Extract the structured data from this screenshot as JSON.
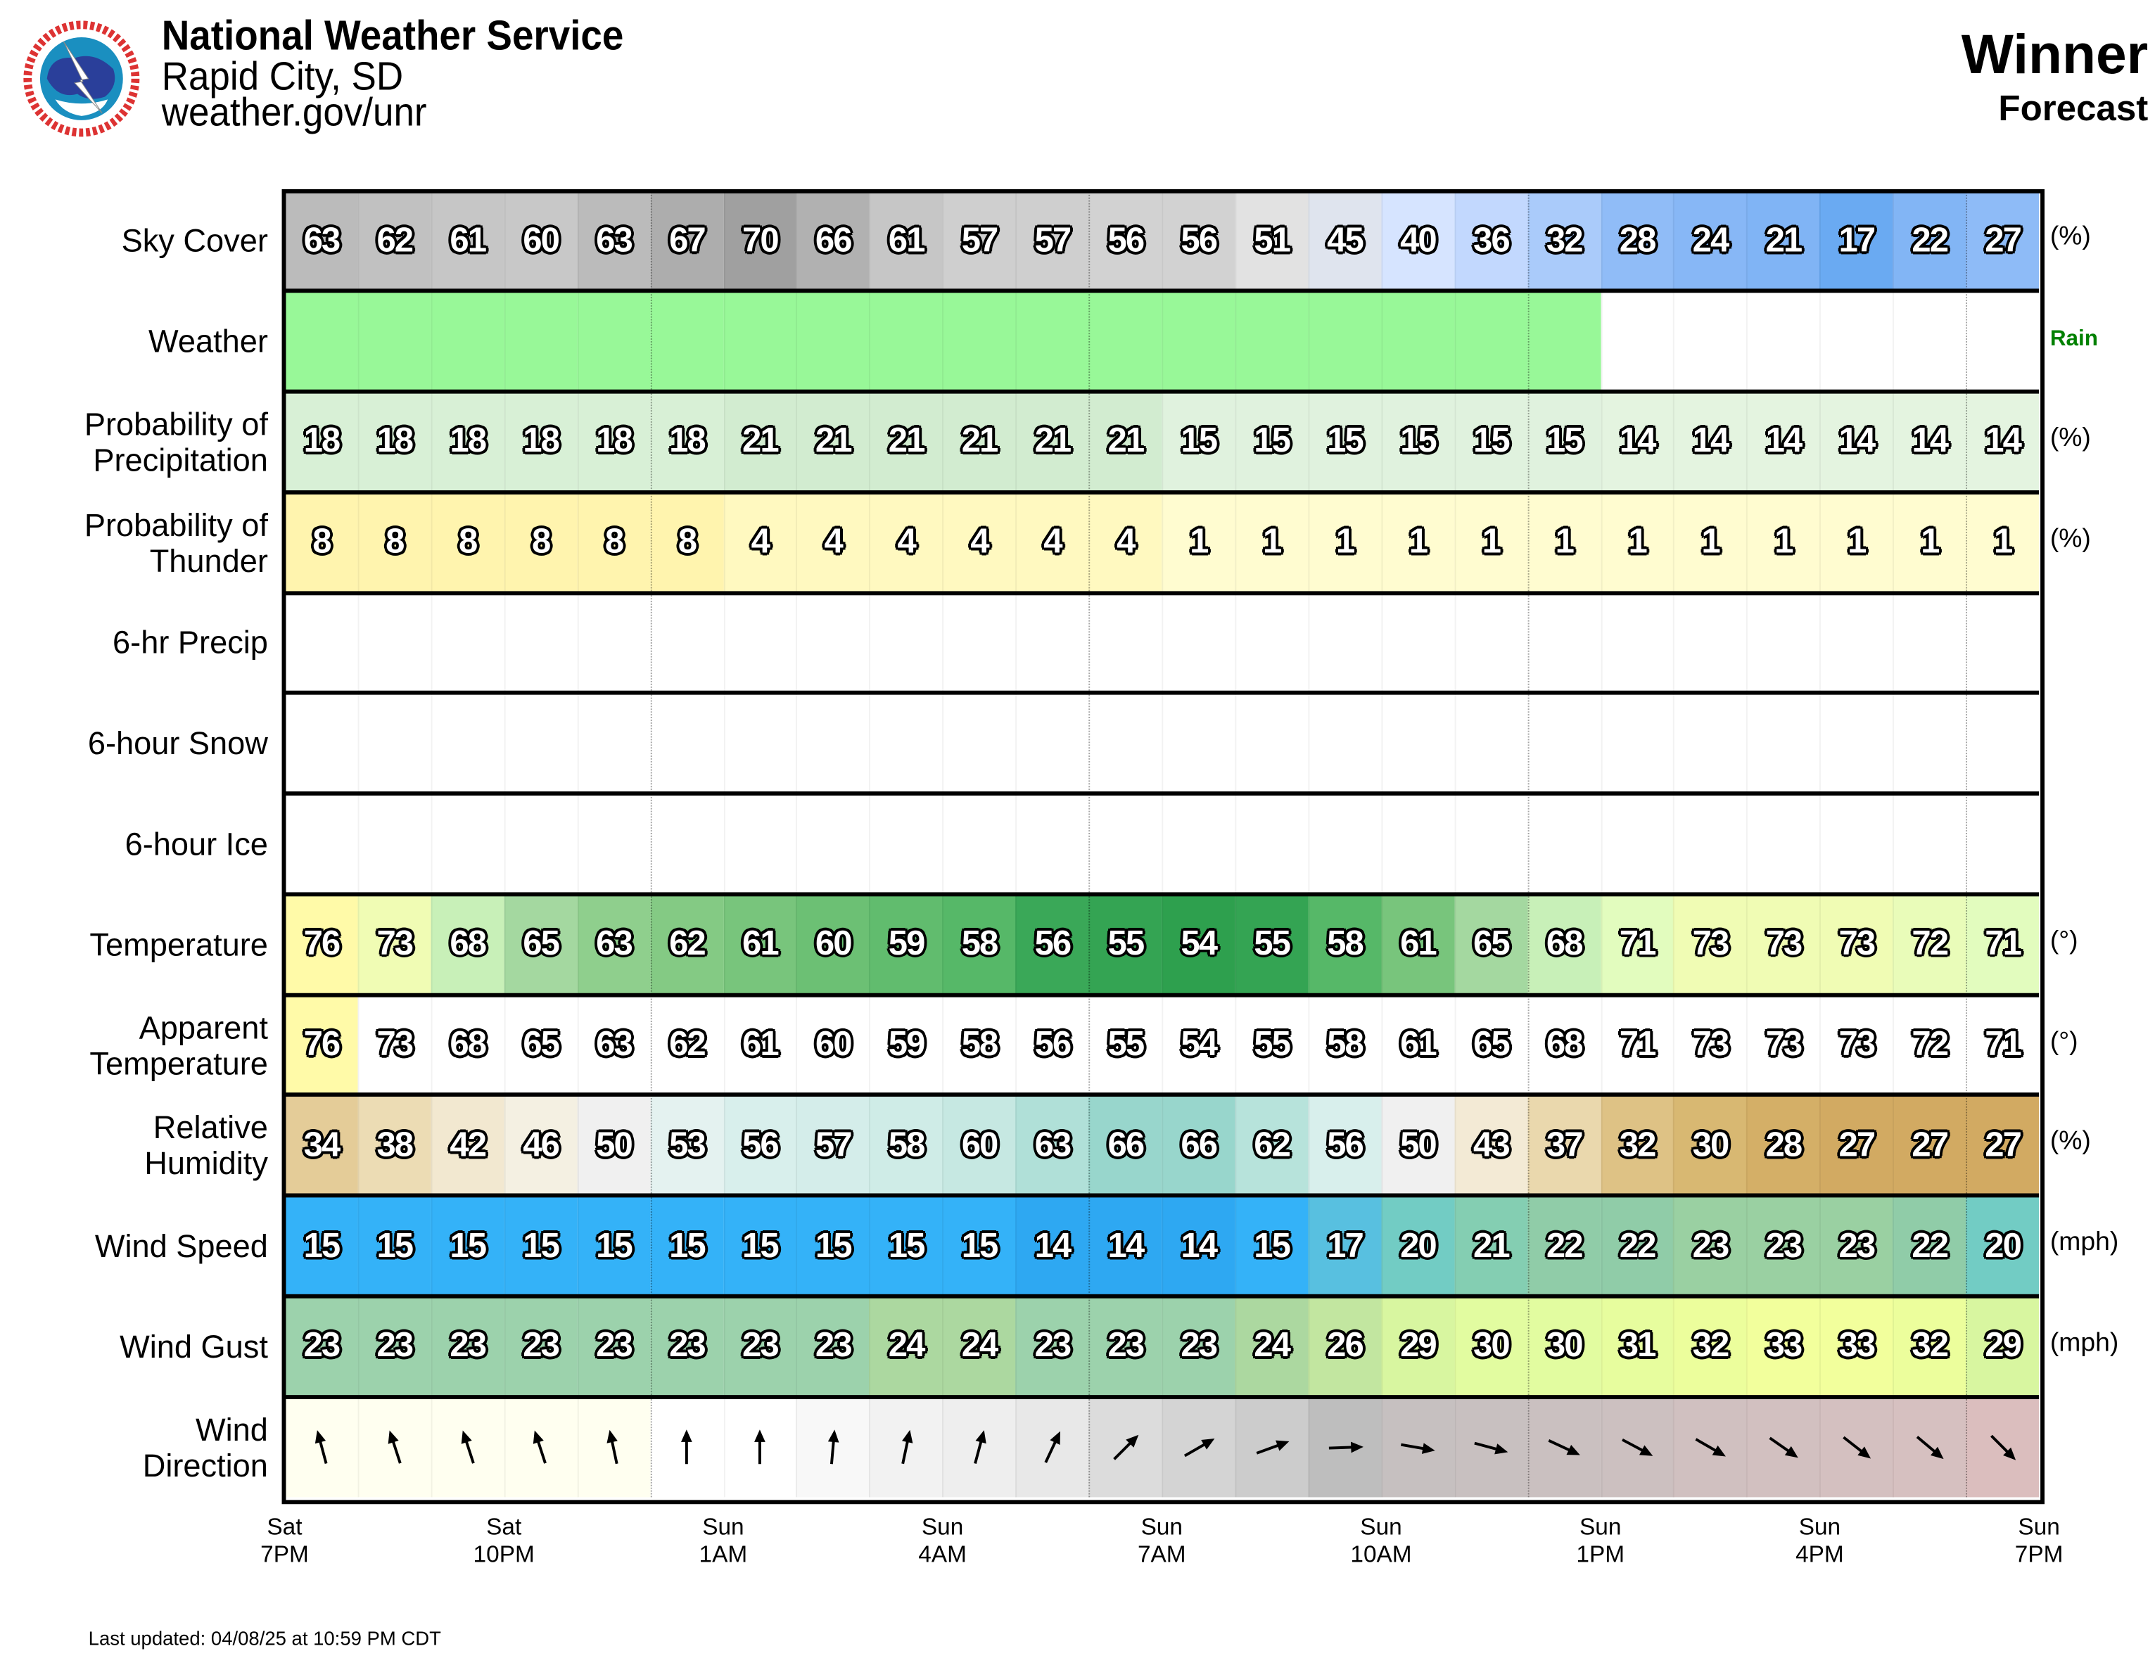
{
  "header": {
    "org": "National Weather Service",
    "office": "Rapid City, SD",
    "url": "weather.gov/unr",
    "location": "Winner",
    "subtitle": "Forecast",
    "logo_text": "NATIONAL WEATHER SERVICE"
  },
  "footer": {
    "last_updated": "Last updated: 04/08/25 at 10:59 PM CDT"
  },
  "chart_data": {
    "type": "table",
    "title": "Winner Forecast",
    "x_ticks": [
      {
        "day": "Sat",
        "time": "7PM"
      },
      {
        "day": "Sat",
        "time": "10PM"
      },
      {
        "day": "Sun",
        "time": "1AM"
      },
      {
        "day": "Sun",
        "time": "4AM"
      },
      {
        "day": "Sun",
        "time": "7AM"
      },
      {
        "day": "Sun",
        "time": "10AM"
      },
      {
        "day": "Sun",
        "time": "1PM"
      },
      {
        "day": "Sun",
        "time": "4PM"
      },
      {
        "day": "Sun",
        "time": "7PM"
      }
    ],
    "hours": 24,
    "rows": [
      {
        "key": "sky",
        "label": [
          "Sky Cover"
        ],
        "unit": "(%)",
        "values": [
          63,
          62,
          61,
          60,
          63,
          67,
          70,
          66,
          61,
          57,
          57,
          56,
          56,
          51,
          45,
          40,
          36,
          32,
          28,
          24,
          21,
          17,
          22,
          27
        ]
      },
      {
        "key": "weather",
        "label": [
          "Weather"
        ],
        "unit": "Rain",
        "rain_hours": 18,
        "rain_color": "#98f898",
        "unit_color": "#008000"
      },
      {
        "key": "pop",
        "label": [
          "Probability of",
          "Precipitation"
        ],
        "unit": "(%)",
        "values": [
          18,
          18,
          18,
          18,
          18,
          18,
          21,
          21,
          21,
          21,
          21,
          21,
          15,
          15,
          15,
          15,
          15,
          15,
          14,
          14,
          14,
          14,
          14,
          14
        ]
      },
      {
        "key": "thunder",
        "label": [
          "Probability of",
          "Thunder"
        ],
        "unit": "(%)",
        "values": [
          8,
          8,
          8,
          8,
          8,
          8,
          4,
          4,
          4,
          4,
          4,
          4,
          1,
          1,
          1,
          1,
          1,
          1,
          1,
          1,
          1,
          1,
          1,
          1
        ]
      },
      {
        "key": "precip6",
        "label": [
          "6-hr Precip"
        ],
        "unit": ""
      },
      {
        "key": "snow6",
        "label": [
          "6-hour Snow"
        ],
        "unit": ""
      },
      {
        "key": "ice6",
        "label": [
          "6-hour Ice"
        ],
        "unit": ""
      },
      {
        "key": "temp",
        "label": [
          "Temperature"
        ],
        "unit": "(°)",
        "values": [
          76,
          73,
          68,
          65,
          63,
          62,
          61,
          60,
          59,
          58,
          56,
          55,
          54,
          55,
          58,
          61,
          65,
          68,
          71,
          73,
          73,
          73,
          72,
          71
        ]
      },
      {
        "key": "apparent",
        "label": [
          "Apparent",
          "Temperature"
        ],
        "unit": "(°)",
        "values": [
          76,
          73,
          68,
          65,
          63,
          62,
          61,
          60,
          59,
          58,
          56,
          55,
          54,
          55,
          58,
          61,
          65,
          68,
          71,
          73,
          73,
          73,
          72,
          71
        ]
      },
      {
        "key": "rh",
        "label": [
          "Relative",
          "Humidity"
        ],
        "unit": "(%)",
        "values": [
          34,
          38,
          42,
          46,
          50,
          53,
          56,
          57,
          58,
          60,
          63,
          66,
          66,
          62,
          56,
          50,
          43,
          37,
          32,
          30,
          28,
          27,
          27,
          27
        ]
      },
      {
        "key": "wind",
        "label": [
          "Wind Speed"
        ],
        "unit": "(mph)",
        "values": [
          15,
          15,
          15,
          15,
          15,
          15,
          15,
          15,
          15,
          15,
          14,
          14,
          14,
          15,
          17,
          20,
          21,
          22,
          22,
          23,
          23,
          23,
          22,
          20
        ]
      },
      {
        "key": "gust",
        "label": [
          "Wind Gust"
        ],
        "unit": "(mph)",
        "values": [
          23,
          23,
          23,
          23,
          23,
          23,
          23,
          23,
          24,
          24,
          23,
          23,
          23,
          24,
          26,
          29,
          30,
          30,
          31,
          32,
          33,
          33,
          32,
          29
        ]
      },
      {
        "key": "wdir",
        "label": [
          "Wind",
          "Direction"
        ],
        "unit": "",
        "arrow_heading_deg": [
          -15,
          -18,
          -18,
          -18,
          -12,
          0,
          0,
          5,
          12,
          15,
          25,
          45,
          60,
          70,
          88,
          100,
          105,
          115,
          118,
          120,
          125,
          128,
          130,
          135
        ]
      }
    ]
  }
}
